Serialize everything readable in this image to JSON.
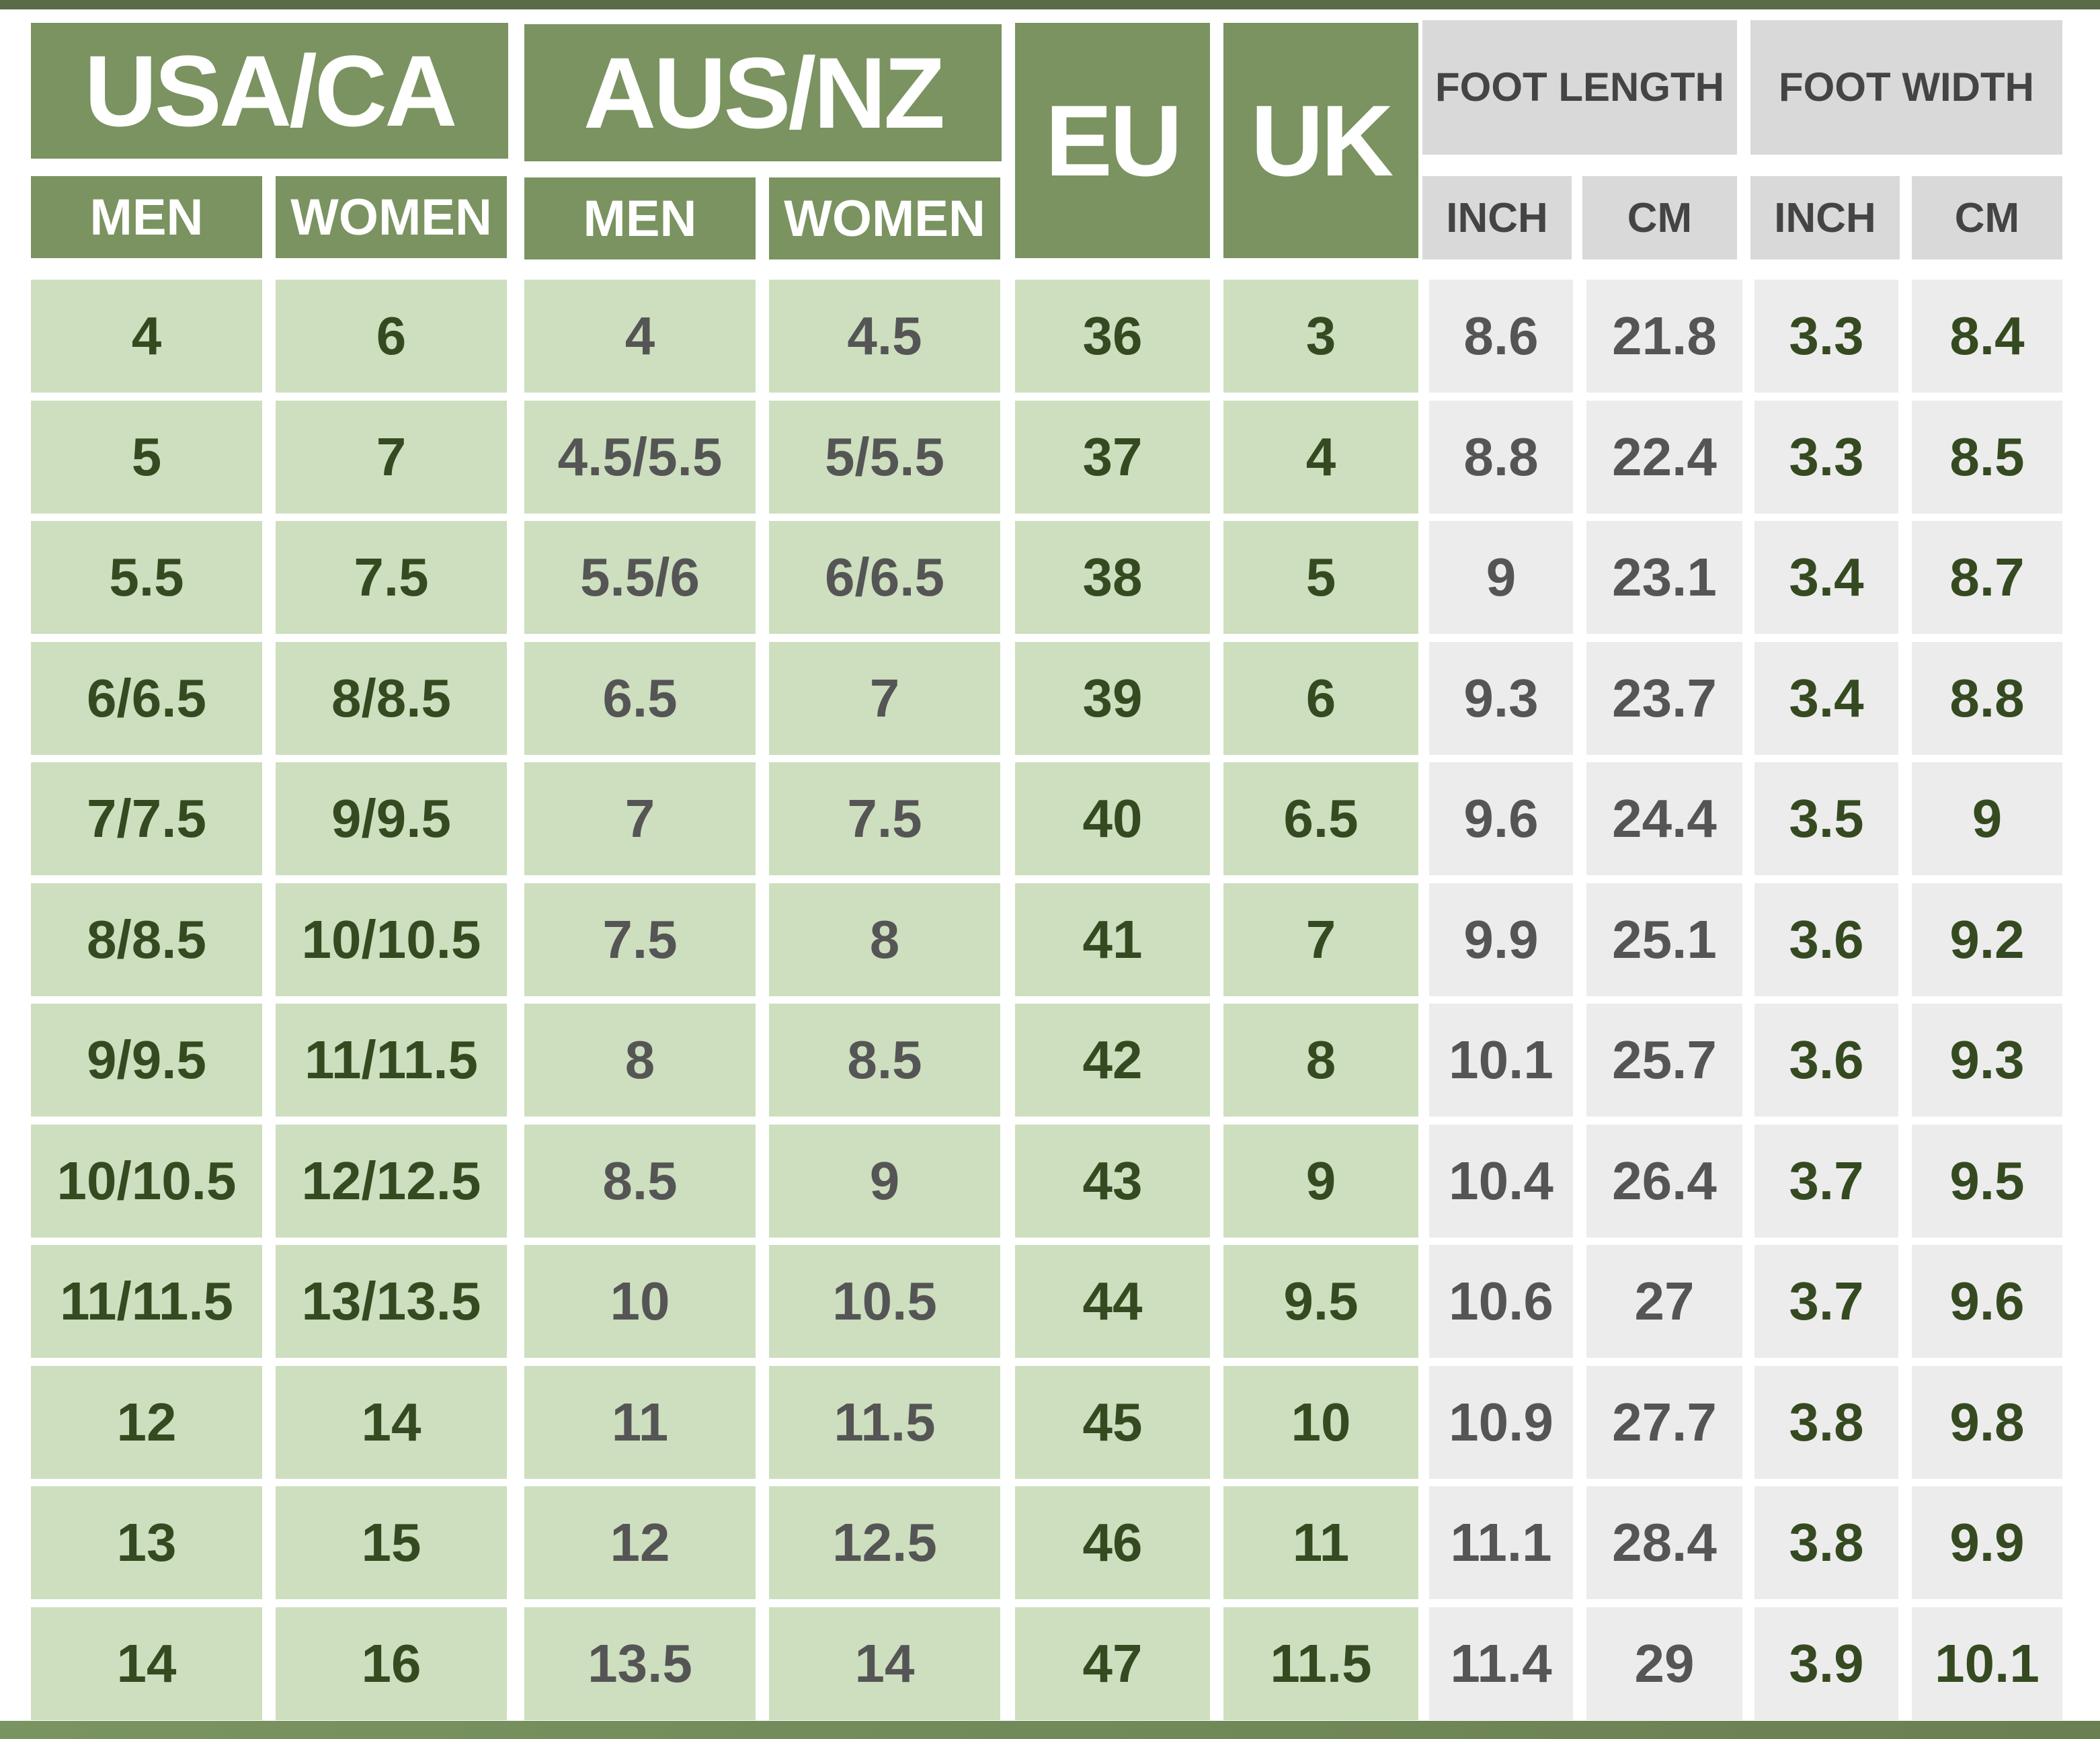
{
  "colors": {
    "header_green": "#7a9360",
    "cell_green": "#cddfbe",
    "header_gray": "#d9d9d9",
    "cell_gray": "#ececec",
    "text_dark_green": "#354a20",
    "text_gray": "#555555",
    "bar": "#5a6b48"
  },
  "headers": {
    "usa_ca": "USA/CA",
    "aus_nz": "AUS/NZ",
    "eu": "EU",
    "uk": "UK",
    "foot_length": "FOOT LENGTH",
    "foot_width": "FOOT WIDTH",
    "usa_men": "MEN",
    "usa_women": "WOMEN",
    "aus_men": "MEN",
    "aus_women": "WOMEN",
    "len_inch": "INCH",
    "len_cm": "CM",
    "wid_inch": "INCH",
    "wid_cm": "CM"
  },
  "columns": [
    "usa_men",
    "usa_women",
    "aus_men",
    "aus_women",
    "eu",
    "uk",
    "length_inch",
    "length_cm",
    "width_inch",
    "width_cm"
  ],
  "rows": [
    [
      "4",
      "6",
      "4",
      "4.5",
      "36",
      "3",
      "8.6",
      "21.8",
      "3.3",
      "8.4"
    ],
    [
      "5",
      "7",
      "4.5/5.5",
      "5/5.5",
      "37",
      "4",
      "8.8",
      "22.4",
      "3.3",
      "8.5"
    ],
    [
      "5.5",
      "7.5",
      "5.5/6",
      "6/6.5",
      "38",
      "5",
      "9",
      "23.1",
      "3.4",
      "8.7"
    ],
    [
      "6/6.5",
      "8/8.5",
      "6.5",
      "7",
      "39",
      "6",
      "9.3",
      "23.7",
      "3.4",
      "8.8"
    ],
    [
      "7/7.5",
      "9/9.5",
      "7",
      "7.5",
      "40",
      "6.5",
      "9.6",
      "24.4",
      "3.5",
      "9"
    ],
    [
      "8/8.5",
      "10/10.5",
      "7.5",
      "8",
      "41",
      "7",
      "9.9",
      "25.1",
      "3.6",
      "9.2"
    ],
    [
      "9/9.5",
      "11/11.5",
      "8",
      "8.5",
      "42",
      "8",
      "10.1",
      "25.7",
      "3.6",
      "9.3"
    ],
    [
      "10/10.5",
      "12/12.5",
      "8.5",
      "9",
      "43",
      "9",
      "10.4",
      "26.4",
      "3.7",
      "9.5"
    ],
    [
      "11/11.5",
      "13/13.5",
      "10",
      "10.5",
      "44",
      "9.5",
      "10.6",
      "27",
      "3.7",
      "9.6"
    ],
    [
      "12",
      "14",
      "11",
      "11.5",
      "45",
      "10",
      "10.9",
      "27.7",
      "3.8",
      "9.8"
    ],
    [
      "13",
      "15",
      "12",
      "12.5",
      "46",
      "11",
      "11.1",
      "28.4",
      "3.8",
      "9.9"
    ],
    [
      "14",
      "16",
      "13.5",
      "14",
      "47",
      "11.5",
      "11.4",
      "29",
      "3.9",
      "10.1"
    ]
  ]
}
